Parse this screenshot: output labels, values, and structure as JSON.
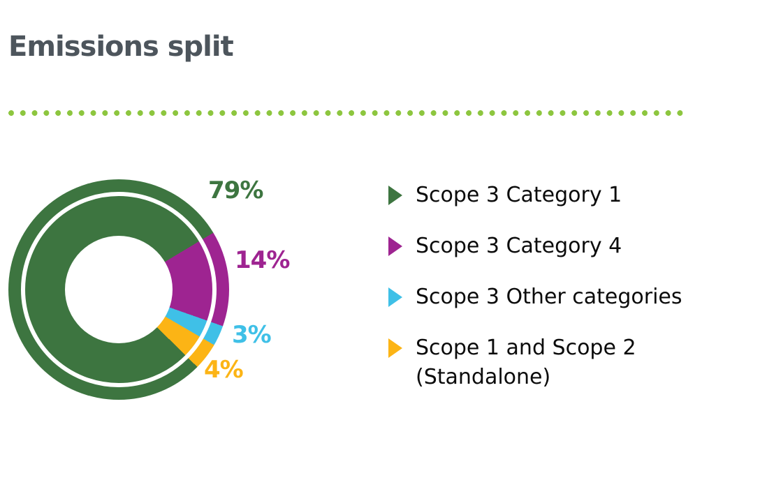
{
  "header": {
    "title": "Emissions split"
  },
  "colors": {
    "title": "#4d555c",
    "dots": "#8dc63f",
    "green": "#3d7540",
    "purple": "#9e2491",
    "blue": "#3fc0e7",
    "yellow": "#fcb415",
    "text": "#0b0b0b",
    "background": "#ffffff"
  },
  "chart_data": {
    "type": "pie",
    "donut": true,
    "title": "Emissions split",
    "unit": "%",
    "start_angle_deg": 134.6,
    "categories": [
      "Scope 3 Category 1",
      "Scope 3 Category 4",
      "Scope 3 Other categories",
      "Scope 1 and Scope 2 (Standalone)"
    ],
    "values": [
      79,
      14,
      3,
      4
    ],
    "slices": [
      {
        "category": "Scope 3 Category 1",
        "value": 79,
        "label": "79%",
        "color": "#3d7540"
      },
      {
        "category": "Scope 3 Category 4",
        "value": 14,
        "label": "14%",
        "color": "#9e2491"
      },
      {
        "category": "Scope 3 Other categories",
        "value": 3,
        "label": "3%",
        "color": "#3fc0e7"
      },
      {
        "category": "Scope 1 and Scope 2 (Standalone)",
        "value": 4,
        "label": "4%",
        "color": "#fcb415"
      }
    ],
    "legend_position": "right",
    "inner_radius_ratio": 0.49,
    "decor_white_ring_radius_ratio": 0.89
  },
  "legend": {
    "items": [
      {
        "label": "Scope 3 Category 1",
        "color": "#3d7540"
      },
      {
        "label": "Scope 3 Category 4",
        "color": "#9e2491"
      },
      {
        "label": "Scope 3 Other categories",
        "color": "#3fc0e7"
      },
      {
        "label": "Scope 1 and Scope 2 (Standalone)",
        "color": "#fcb415"
      }
    ]
  }
}
